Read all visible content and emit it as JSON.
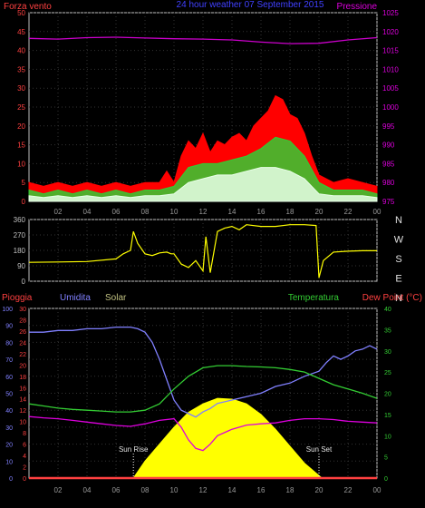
{
  "chart_data": [
    {
      "type": "line",
      "title": "24 hour weather 07 September 2015",
      "legend": {
        "left": "Forza vento",
        "right": "Pressione"
      },
      "y_left": {
        "min": 0,
        "max": 50,
        "step": 5,
        "ticks": [
          "0",
          "5",
          "10",
          "15",
          "20",
          "25",
          "30",
          "35",
          "40",
          "45",
          "50"
        ]
      },
      "y_right": {
        "min": 975,
        "max": 1025,
        "step": 5,
        "ticks": [
          "975",
          "980",
          "985",
          "990",
          "995",
          "1000",
          "1005",
          "1010",
          "1015",
          "1020",
          "1025"
        ]
      },
      "x_ticks": [
        "02",
        "04",
        "06",
        "08",
        "10",
        "12",
        "14",
        "16",
        "18",
        "20",
        "22",
        "00"
      ],
      "series": [
        {
          "name": "Forza vento",
          "color": "#ff0000",
          "axis": "left",
          "x": [
            0,
            1,
            2,
            3,
            4,
            5,
            6,
            7,
            8,
            9,
            9.5,
            10,
            10.5,
            11,
            11.5,
            12,
            12.5,
            13,
            13.5,
            14,
            14.5,
            15,
            15.5,
            16,
            16.5,
            17,
            17.5,
            18,
            18.5,
            19,
            19.5,
            20,
            21,
            22,
            23,
            24
          ],
          "y": [
            5,
            4,
            5,
            4,
            5,
            4,
            5,
            4,
            5,
            5,
            8,
            5,
            12,
            16,
            14,
            18,
            13,
            16,
            15,
            17,
            18,
            16,
            20,
            22,
            24,
            28,
            27,
            23,
            22,
            18,
            12,
            7,
            5,
            6,
            5,
            4
          ]
        },
        {
          "name": "green",
          "color": "#33cc33",
          "axis": "left",
          "x": [
            0,
            1,
            2,
            3,
            4,
            5,
            6,
            7,
            8,
            9,
            10,
            11,
            12,
            13,
            14,
            15,
            16,
            17,
            18,
            19,
            20,
            21,
            22,
            23,
            24
          ],
          "y": [
            3,
            2,
            3,
            2,
            3,
            2,
            3,
            2,
            3,
            3,
            4,
            9,
            10,
            10,
            11,
            12,
            14,
            17,
            16,
            12,
            5,
            3,
            3,
            3,
            2
          ]
        },
        {
          "name": "white",
          "color": "#e8ffe8",
          "axis": "left",
          "x": [
            0,
            1,
            2,
            3,
            4,
            5,
            6,
            7,
            8,
            9,
            10,
            11,
            12,
            13,
            14,
            15,
            16,
            17,
            18,
            19,
            20,
            21,
            22,
            23,
            24
          ],
          "y": [
            1.5,
            1,
            1.5,
            1,
            1.5,
            1,
            1.5,
            1,
            1.5,
            1.5,
            2,
            5,
            6,
            7,
            7,
            8,
            9,
            9,
            8,
            6,
            2,
            1.5,
            1.5,
            1.5,
            1
          ]
        },
        {
          "name": "Pressione",
          "color": "#cc00cc",
          "axis": "right",
          "x": [
            0,
            2,
            4,
            6,
            8,
            10,
            12,
            14,
            16,
            18,
            20,
            22,
            24
          ],
          "y": [
            1018.2,
            1018.0,
            1018.4,
            1018.5,
            1018.3,
            1018.1,
            1018.0,
            1017.8,
            1017.2,
            1016.8,
            1016.9,
            1017.8,
            1018.4
          ]
        }
      ]
    },
    {
      "type": "line",
      "y_left": {
        "min": 0,
        "max": 360,
        "ticks": [
          "0",
          "90",
          "180",
          "270",
          "360"
        ]
      },
      "y_right_labels": [
        "N",
        "W",
        "S",
        "E",
        "N"
      ],
      "series": [
        {
          "name": "wind direction",
          "color": "#ffff00",
          "x": [
            0,
            2,
            4,
            6,
            6.5,
            7,
            7.2,
            7.5,
            8,
            8.5,
            9,
            9.5,
            9.8,
            10,
            10.5,
            11,
            11.5,
            12,
            12.2,
            12.5,
            13,
            13.5,
            14,
            14.5,
            15,
            16,
            17,
            18,
            19,
            19.8,
            20,
            20.3,
            21,
            22,
            23,
            24
          ],
          "y": [
            110,
            112,
            115,
            130,
            160,
            180,
            290,
            220,
            160,
            150,
            165,
            170,
            160,
            160,
            100,
            80,
            120,
            60,
            260,
            50,
            290,
            310,
            320,
            300,
            330,
            320,
            320,
            330,
            330,
            325,
            20,
            120,
            170,
            175,
            178,
            178
          ]
        }
      ]
    },
    {
      "type": "line",
      "labels": {
        "rain": "Pioggia",
        "humidity": "Umidita",
        "solar": "Solar",
        "temperature": "Temperatura",
        "dewpoint": "Dew Point (°C)"
      },
      "y_humidity": {
        "min": 0,
        "max": 100,
        "ticks": [
          "0",
          "10",
          "20",
          "30",
          "40",
          "50",
          "60",
          "70",
          "80",
          "90",
          "100"
        ]
      },
      "y_rain": {
        "min": 0,
        "max": 30,
        "ticks": [
          "0",
          "2",
          "4",
          "6",
          "8",
          "10",
          "12",
          "14",
          "16",
          "18",
          "20",
          "22",
          "24",
          "26",
          "28",
          "30"
        ]
      },
      "y_temp": {
        "min": 0,
        "max": 40,
        "ticks": [
          "0",
          "5",
          "10",
          "15",
          "20",
          "25",
          "30",
          "35",
          "40"
        ]
      },
      "x_ticks": [
        "02",
        "04",
        "06",
        "08",
        "10",
        "12",
        "14",
        "16",
        "18",
        "20",
        "22",
        "00"
      ],
      "annotations": [
        {
          "text": "Sun Rise",
          "x": 7.2
        },
        {
          "text": "Sun Set",
          "x": 20.0
        }
      ],
      "series": [
        {
          "name": "Umidita",
          "color": "#8080ff",
          "axis": "humidity",
          "x": [
            0,
            1,
            2,
            3,
            4,
            5,
            6,
            7,
            7.5,
            8,
            8.5,
            9,
            9.5,
            10,
            10.5,
            11,
            11.5,
            12,
            12.5,
            13,
            14,
            15,
            16,
            17,
            18,
            19,
            20,
            20.5,
            21,
            21.5,
            22,
            22.5,
            23,
            23.5,
            24
          ],
          "y": [
            86,
            86,
            87,
            87,
            88,
            88,
            89,
            89,
            88,
            86,
            80,
            70,
            58,
            46,
            40,
            38,
            36,
            39,
            41,
            44,
            46,
            48,
            50,
            54,
            56,
            60,
            63,
            68,
            72,
            70,
            72,
            75,
            76,
            78,
            76
          ]
        },
        {
          "name": "Temperatura",
          "color": "#33cc33",
          "axis": "temp",
          "x": [
            0,
            1,
            2,
            3,
            4,
            5,
            6,
            7,
            8,
            9,
            10,
            11,
            12,
            13,
            14,
            15,
            16,
            17,
            18,
            19,
            20,
            21,
            22,
            23,
            24
          ],
          "y": [
            17.5,
            17.0,
            16.5,
            16.2,
            16.0,
            15.8,
            15.6,
            15.6,
            16.0,
            17.5,
            21,
            24,
            26,
            26.5,
            26.5,
            26.3,
            26.2,
            26.0,
            25.6,
            25.0,
            23.5,
            22.0,
            21.0,
            20.0,
            18.8
          ]
        },
        {
          "name": "Dew Point",
          "color": "#dd00dd",
          "axis": "temp",
          "x": [
            0,
            1,
            2,
            3,
            4,
            5,
            6,
            7,
            8,
            9,
            10,
            10.5,
            11,
            11.5,
            12,
            12.5,
            13,
            14,
            15,
            16,
            17,
            18,
            19,
            20,
            21,
            22,
            23,
            24
          ],
          "y": [
            14.5,
            14.2,
            14.0,
            13.6,
            13.2,
            12.8,
            12.4,
            12.2,
            12.8,
            13.6,
            14.0,
            12.0,
            9.0,
            7.0,
            6.5,
            8.0,
            10.0,
            11.5,
            12.5,
            12.8,
            13.0,
            13.6,
            14.0,
            14.0,
            13.8,
            13.4,
            13.2,
            13.0
          ]
        },
        {
          "name": "Solar",
          "color": "#ffff00",
          "axis": "temp",
          "x": [
            7.2,
            8,
            9,
            10,
            11,
            12,
            13,
            14,
            15,
            16,
            17,
            18,
            19,
            20.2
          ],
          "y": [
            0,
            4,
            8,
            12,
            15.5,
            17.5,
            18.8,
            18.6,
            17.5,
            15.0,
            11.5,
            7.5,
            3.5,
            0
          ]
        },
        {
          "name": "Pioggia",
          "color": "#ff4040",
          "axis": "rain",
          "x": [
            0,
            24
          ],
          "y": [
            0,
            0
          ]
        }
      ]
    }
  ]
}
